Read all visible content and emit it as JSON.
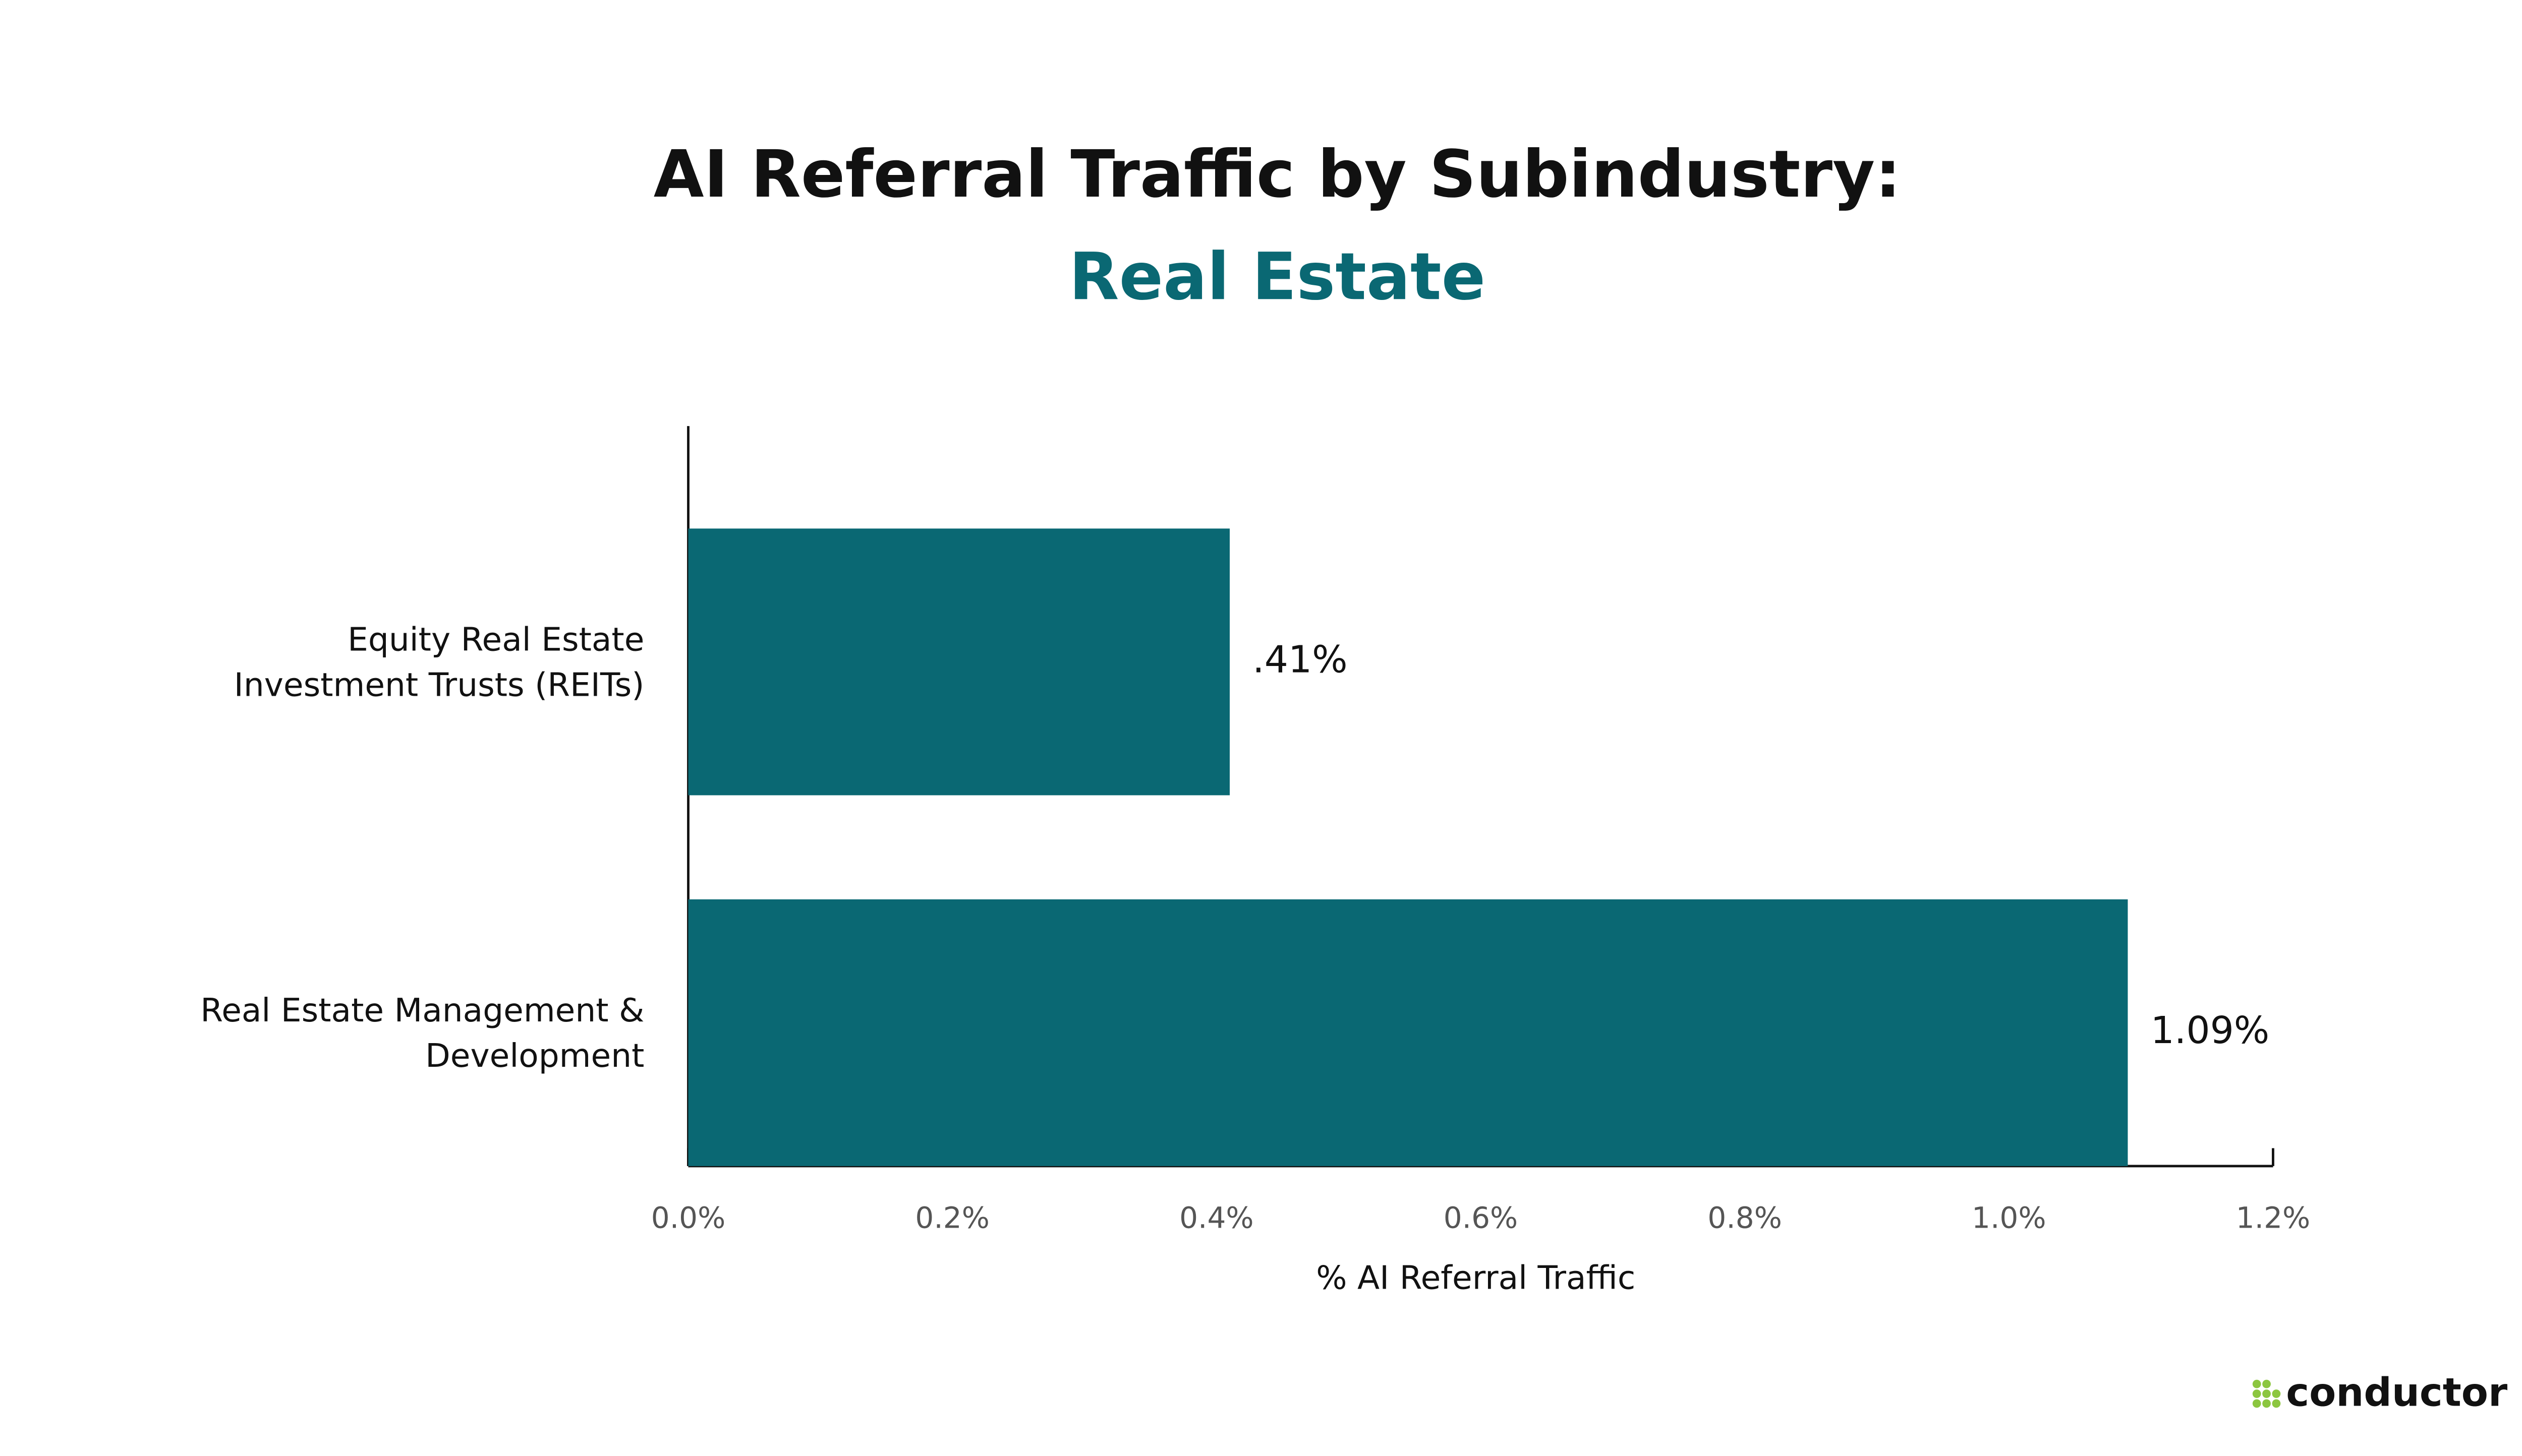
{
  "chart_data": {
    "type": "bar",
    "orientation": "horizontal",
    "title": "AI Referral Traffic by Subindustry:",
    "subtitle": "Real Estate",
    "x_label": "% AI Referral Traffic",
    "categories": [
      "Equity Real Estate Investment Trusts (REITs)",
      "Real Estate Management & Development"
    ],
    "values": [
      0.41,
      1.09
    ],
    "value_labels": [
      ".41%",
      "1.09%"
    ],
    "color": "#0a6873",
    "xlim": [
      0,
      1.2
    ],
    "xticks": [
      {
        "value": 0,
        "label": "0.0%"
      },
      {
        "value": 0.2,
        "label": "0.2%"
      },
      {
        "value": 0.4,
        "label": "0.4%"
      },
      {
        "value": 0.6,
        "label": "0.6%"
      },
      {
        "value": 0.8,
        "label": "0.8%"
      },
      {
        "value": 1.0,
        "label": "1.0%"
      },
      {
        "value": 1.2,
        "label": "1.2%"
      }
    ],
    "grid": false
  },
  "brand": "conductor"
}
